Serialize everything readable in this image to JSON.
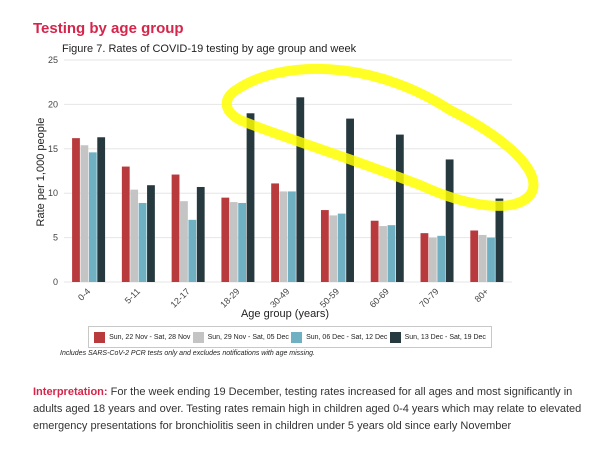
{
  "heading": "Testing by age group",
  "figure_title": "Figure 7. Rates of COVID-19 testing by age group and week",
  "footnote": "Includes SARS-CoV-2 PCR tests only and excludes notifications with age missing.",
  "interpretation": {
    "label": "Interpretation:",
    "text": "For the week ending 19 December, testing rates increased for all ages and most significantly in adults aged 18 years and over. Testing rates remain high in children aged 0-4 years which may relate to elevated emergency presentations for bronchiolitis seen in children under 5 years old since early November"
  },
  "annotation": {
    "type": "highlight-ellipse",
    "color": "#ffff00"
  },
  "chart_data": {
    "type": "bar",
    "categories": [
      "0-4",
      "5-11",
      "12-17",
      "18-29",
      "30-49",
      "50-59",
      "60-69",
      "70-79",
      "80+"
    ],
    "series": [
      {
        "name": "Sun, 22 Nov - Sat, 28 Nov",
        "color": "#b83a3d",
        "values": [
          16.2,
          13.0,
          12.1,
          9.5,
          11.1,
          8.1,
          6.9,
          5.5,
          5.8
        ]
      },
      {
        "name": "Sun, 29 Nov - Sat, 05 Dec",
        "color": "#c4c4c4",
        "values": [
          15.4,
          10.4,
          9.1,
          9.0,
          10.2,
          7.5,
          6.3,
          5.0,
          5.3
        ]
      },
      {
        "name": "Sun, 06 Dec - Sat, 12 Dec",
        "color": "#6fb0c3",
        "values": [
          14.6,
          8.9,
          7.0,
          8.9,
          10.2,
          7.7,
          6.4,
          5.2,
          5.0
        ]
      },
      {
        "name": "Sun, 13 Dec - Sat, 19 Dec",
        "color": "#26393f",
        "values": [
          16.3,
          10.9,
          10.7,
          19.0,
          20.8,
          18.4,
          16.6,
          13.8,
          9.4
        ]
      }
    ],
    "xlabel": "Age group (years)",
    "ylabel": "Rate per 1,000 people",
    "ylim": [
      0,
      25
    ],
    "yticks": [
      0,
      5,
      10,
      15,
      20,
      25
    ],
    "grid": true,
    "legend": "bottom"
  }
}
